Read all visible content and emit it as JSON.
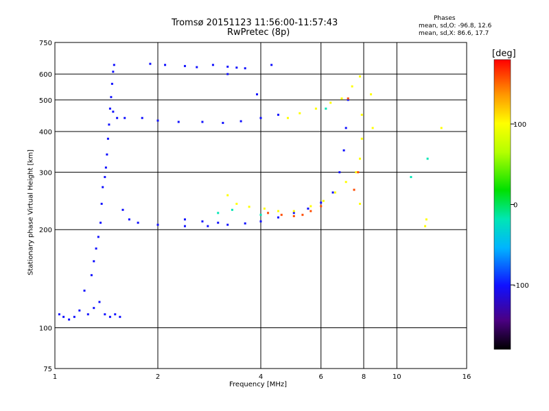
{
  "chart": {
    "title": "Tromsø 20151123 11:56:00-11:57:43",
    "subtitle": "RwPretec (8p)",
    "phases": {
      "heading": "Phases",
      "o_stats": "mean, sd,O: -96.8, 12.6",
      "x_stats": "mean, sd,X:  86.6, 17.7"
    },
    "xlabel": "Frequency [MHz]",
    "ylabel": "Stationary phase Virtual Height [km]",
    "colorbar_label": "[deg]"
  },
  "chart_data": {
    "type": "scatter",
    "x_scale": "log",
    "y_scale": "log",
    "xlim": [
      1,
      16
    ],
    "ylim": [
      75,
      750
    ],
    "x_ticks": [
      1,
      2,
      4,
      6,
      8,
      10,
      16
    ],
    "x_tick_labels": [
      "1",
      "2",
      "4",
      "6",
      "8",
      "10",
      "16"
    ],
    "y_ticks": [
      75,
      100,
      200,
      300,
      400,
      500,
      600,
      750
    ],
    "y_tick_labels": [
      "75",
      "100",
      "200",
      "300",
      "400",
      "500",
      "600",
      "750"
    ],
    "grid_x": [
      2,
      4,
      6,
      8,
      10
    ],
    "grid_y": [
      100,
      200,
      300,
      400,
      500,
      600
    ],
    "grid": true,
    "colorbar": {
      "range": [
        -180,
        180
      ],
      "ticks": [
        100,
        0,
        -100
      ],
      "tick_labels": [
        "100",
        "0",
        "-100"
      ],
      "colors": [
        "#000000",
        "#4b0082",
        "#1010ff",
        "#00b4ff",
        "#00e6b4",
        "#00e000",
        "#b4ff00",
        "#ffff00",
        "#ff9600",
        "#ff0000"
      ]
    },
    "series": [
      {
        "phase": -100,
        "points": [
          [
            1.03,
            110
          ],
          [
            1.06,
            108
          ],
          [
            1.1,
            106
          ],
          [
            1.14,
            108
          ],
          [
            1.18,
            113
          ],
          [
            1.25,
            110
          ],
          [
            1.3,
            115
          ],
          [
            1.35,
            120
          ],
          [
            1.4,
            110
          ],
          [
            1.45,
            108
          ],
          [
            1.5,
            110
          ],
          [
            1.55,
            108
          ],
          [
            1.22,
            130
          ],
          [
            1.28,
            145
          ],
          [
            1.3,
            160
          ],
          [
            1.32,
            175
          ],
          [
            1.34,
            190
          ],
          [
            1.36,
            210
          ],
          [
            1.37,
            240
          ],
          [
            1.38,
            270
          ],
          [
            1.4,
            290
          ],
          [
            1.41,
            310
          ],
          [
            1.42,
            340
          ],
          [
            1.43,
            380
          ],
          [
            1.44,
            420
          ],
          [
            1.45,
            470
          ],
          [
            1.46,
            510
          ],
          [
            1.47,
            560
          ],
          [
            1.48,
            610
          ],
          [
            1.49,
            640
          ],
          [
            1.48,
            460
          ],
          [
            1.52,
            440
          ],
          [
            1.58,
            230
          ],
          [
            1.65,
            215
          ],
          [
            1.75,
            210
          ],
          [
            2.0,
            207
          ],
          [
            2.4,
            205
          ],
          [
            2.8,
            205
          ],
          [
            3.2,
            207
          ],
          [
            3.6,
            209
          ],
          [
            4.0,
            212
          ],
          [
            4.5,
            218
          ],
          [
            5.0,
            225
          ],
          [
            5.5,
            232
          ],
          [
            6.0,
            242
          ],
          [
            6.5,
            260
          ],
          [
            6.8,
            300
          ],
          [
            7.0,
            350
          ],
          [
            7.1,
            410
          ],
          [
            7.2,
            500
          ],
          [
            1.6,
            440
          ],
          [
            1.8,
            440
          ],
          [
            2.0,
            432
          ],
          [
            2.3,
            428
          ],
          [
            2.7,
            428
          ],
          [
            3.1,
            425
          ],
          [
            3.5,
            430
          ],
          [
            4.0,
            440
          ],
          [
            4.5,
            450
          ],
          [
            1.9,
            645
          ],
          [
            2.1,
            640
          ],
          [
            2.4,
            635
          ],
          [
            2.6,
            630
          ],
          [
            2.9,
            640
          ],
          [
            3.2,
            632
          ],
          [
            3.4,
            628
          ],
          [
            3.6,
            625
          ],
          [
            4.3,
            640
          ],
          [
            2.4,
            215
          ],
          [
            2.7,
            212
          ],
          [
            3.0,
            210
          ],
          [
            3.2,
            600
          ],
          [
            3.9,
            520
          ]
        ]
      },
      {
        "phase": 100,
        "points": [
          [
            3.2,
            255
          ],
          [
            3.4,
            240
          ],
          [
            3.7,
            235
          ],
          [
            4.1,
            232
          ],
          [
            4.5,
            228
          ],
          [
            5.0,
            228
          ],
          [
            5.6,
            236
          ],
          [
            6.1,
            245
          ],
          [
            6.6,
            260
          ],
          [
            7.1,
            280
          ],
          [
            7.6,
            300
          ],
          [
            7.8,
            330
          ],
          [
            7.9,
            380
          ],
          [
            7.9,
            450
          ],
          [
            7.8,
            240
          ],
          [
            4.8,
            440
          ],
          [
            5.2,
            455
          ],
          [
            5.8,
            470
          ],
          [
            6.4,
            490
          ],
          [
            6.9,
            505
          ],
          [
            7.4,
            550
          ],
          [
            7.8,
            590
          ],
          [
            8.4,
            520
          ],
          [
            8.5,
            410
          ],
          [
            13.5,
            410
          ],
          [
            12.2,
            215
          ],
          [
            12.1,
            205
          ]
        ]
      },
      {
        "phase": 160,
        "points": [
          [
            4.2,
            225
          ],
          [
            4.6,
            222
          ],
          [
            5.0,
            220
          ],
          [
            5.3,
            222
          ],
          [
            5.6,
            228
          ],
          [
            6.0,
            236
          ],
          [
            7.5,
            265
          ],
          [
            7.7,
            300
          ],
          [
            7.2,
            505
          ]
        ]
      },
      {
        "phase": -20,
        "points": [
          [
            3.0,
            225
          ],
          [
            3.3,
            230
          ],
          [
            4.0,
            222
          ],
          [
            6.2,
            470
          ],
          [
            11.0,
            290
          ],
          [
            12.3,
            330
          ]
        ]
      }
    ]
  }
}
